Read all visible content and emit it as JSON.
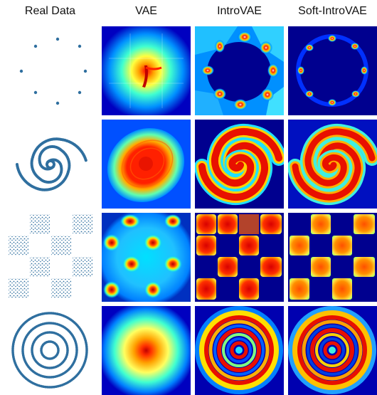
{
  "columns": [
    "Real Data",
    "VAE",
    "IntroVAE",
    "Soft-IntroVAE"
  ],
  "rows": [
    "8gaussians",
    "spiral",
    "checkerboard",
    "rings"
  ],
  "colors": {
    "points": "#2f6f9f",
    "background": "#00008f",
    "jet": [
      "#00008f",
      "#0000ff",
      "#0080ff",
      "#00ffff",
      "#80ff80",
      "#ffff00",
      "#ff8000",
      "#ff0000",
      "#800000"
    ]
  }
}
